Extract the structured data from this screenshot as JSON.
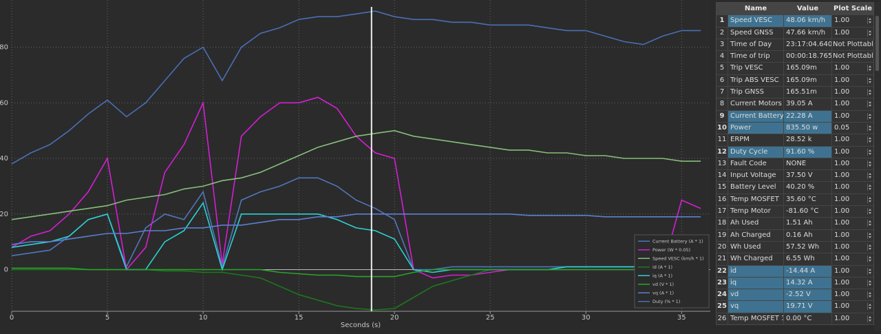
{
  "chart_data": {
    "type": "line",
    "xlabel": "Seconds (s)",
    "x": [
      0,
      1,
      2,
      3,
      4,
      5,
      6,
      7,
      8,
      9,
      10,
      11,
      12,
      13,
      14,
      15,
      16,
      17,
      18,
      19,
      20,
      21,
      22,
      23,
      24,
      25,
      26,
      27,
      28,
      29,
      30,
      31,
      32,
      33,
      34,
      35,
      36
    ],
    "xlim": [
      0,
      36.5
    ],
    "xticks": [
      0,
      5,
      10,
      15,
      20,
      25,
      30,
      35
    ],
    "ylim": [
      -15,
      97
    ],
    "yticks": [
      0,
      20,
      40,
      60,
      80
    ],
    "grid": true,
    "legend": "lower right",
    "cursor_x": 18.8,
    "series": [
      {
        "name": "Current Battery (A * 1)",
        "color": "#5077bb",
        "values": [
          5,
          6,
          7,
          12,
          18,
          20,
          1,
          15,
          20,
          18,
          28,
          1,
          25,
          28,
          30,
          33,
          33,
          30,
          25,
          22,
          18,
          0,
          0,
          1,
          1,
          1,
          1,
          1,
          1,
          1,
          1,
          1,
          1,
          1,
          1,
          10,
          12
        ]
      },
      {
        "name": "Power (W * 0.05)",
        "color": "#d41fd4",
        "values": [
          8,
          12,
          14,
          20,
          28,
          40,
          0,
          8,
          35,
          45,
          60,
          2,
          48,
          55,
          60,
          60,
          62,
          58,
          48,
          42,
          40,
          0,
          -3,
          -2,
          -2,
          -1,
          0,
          0,
          0,
          0,
          0,
          0,
          0,
          0,
          0,
          25,
          22
        ]
      },
      {
        "name": "Speed VESC (km/h * 1)",
        "color": "#86c07a",
        "values": [
          18,
          19,
          20,
          21,
          22,
          23,
          25,
          26,
          27,
          29,
          30,
          32,
          33,
          35,
          38,
          41,
          44,
          46,
          48,
          49,
          50,
          48,
          47,
          46,
          45,
          44,
          43,
          43,
          42,
          42,
          41,
          41,
          40,
          40,
          40,
          39,
          39
        ]
      },
      {
        "name": "id (A * 1)",
        "color": "#1c7a1c",
        "values": [
          0,
          0,
          0,
          0,
          0,
          0,
          0,
          0,
          -0.5,
          -0.5,
          -1,
          -1,
          -2,
          -3,
          -6,
          -9,
          -11,
          -13,
          -14,
          -14.5,
          -14,
          -10,
          -6,
          -4,
          -2,
          0,
          0,
          0,
          0,
          0,
          0,
          0,
          0,
          0,
          0,
          0,
          0
        ]
      },
      {
        "name": "iq (A * 1)",
        "color": "#2bd3d3",
        "values": [
          8,
          9,
          10,
          12,
          18,
          20,
          0,
          0,
          10,
          14,
          24,
          0,
          20,
          20,
          20,
          20,
          20,
          18,
          15,
          14,
          11,
          0,
          -1,
          0,
          0,
          0,
          0,
          0,
          0,
          1,
          1,
          1,
          1,
          1,
          1,
          9,
          9
        ]
      },
      {
        "name": "vd (V * 1)",
        "color": "#2aa52a",
        "values": [
          0.5,
          0.5,
          0.5,
          0.5,
          0,
          0,
          0,
          0,
          0,
          0,
          0,
          0,
          0,
          0,
          -1,
          -1.5,
          -2,
          -2,
          -2.5,
          -2.5,
          -2.5,
          -1,
          0,
          0,
          0,
          0,
          0,
          0,
          0,
          0,
          0,
          0,
          0,
          0,
          0,
          0,
          0
        ]
      },
      {
        "name": "vq (A * 1)",
        "color": "#5b80d2",
        "values": [
          9,
          10,
          10,
          11,
          12,
          13,
          13,
          14,
          14,
          15,
          15,
          16,
          16,
          17,
          18,
          18,
          19,
          19,
          20,
          20,
          20,
          20,
          20,
          20,
          20,
          20,
          20,
          19.5,
          19.5,
          19.5,
          19.5,
          19,
          19,
          19,
          19,
          19,
          19
        ]
      },
      {
        "name": "Duty (% * 1)",
        "color": "#4a6fb5",
        "values": [
          38,
          42,
          45,
          50,
          56,
          61,
          55,
          60,
          68,
          76,
          80,
          68,
          80,
          85,
          87,
          90,
          91,
          91,
          92,
          93,
          91,
          90,
          90,
          89,
          89,
          88,
          88,
          88,
          87,
          86,
          86,
          84,
          82,
          81,
          84,
          86,
          86
        ]
      }
    ]
  },
  "table": {
    "columns": [
      "Name",
      "Value",
      "Plot Scale"
    ],
    "rows": [
      {
        "index": 1,
        "name": "Speed VESC",
        "value": "48.06 km/h",
        "scale": "1.00",
        "highlight": true
      },
      {
        "index": 2,
        "name": "Speed GNSS",
        "value": "47.66 km/h",
        "scale": "1.00",
        "highlight": false
      },
      {
        "index": 3,
        "name": "Time of Day",
        "value": "23:17:04.640",
        "scale": "Not Plottable",
        "highlight": false
      },
      {
        "index": 4,
        "name": "Time of trip",
        "value": "00:00:18.765",
        "scale": "Not Plottable",
        "highlight": false
      },
      {
        "index": 5,
        "name": "Trip VESC",
        "value": "165.09m",
        "scale": "1.00",
        "highlight": false
      },
      {
        "index": 6,
        "name": "Trip ABS VESC",
        "value": "165.09m",
        "scale": "1.00",
        "highlight": false
      },
      {
        "index": 7,
        "name": "Trip GNSS",
        "value": "165.51m",
        "scale": "1.00",
        "highlight": false
      },
      {
        "index": 8,
        "name": "Current Motors",
        "value": "39.05 A",
        "scale": "1.00",
        "highlight": false
      },
      {
        "index": 9,
        "name": "Current Battery",
        "value": "22.28 A",
        "scale": "1.00",
        "highlight": true
      },
      {
        "index": 10,
        "name": "Power",
        "value": "835.50 w",
        "scale": "0.05",
        "highlight": true
      },
      {
        "index": 11,
        "name": "ERPM",
        "value": "28.52 k",
        "scale": "1.00",
        "highlight": false
      },
      {
        "index": 12,
        "name": "Duty Cycle",
        "value": "91.60 %",
        "scale": "1.00",
        "highlight": true
      },
      {
        "index": 13,
        "name": "Fault Code",
        "value": "NONE",
        "scale": "1.00",
        "highlight": false
      },
      {
        "index": 14,
        "name": "Input Voltage",
        "value": "37.50 V",
        "scale": "1.00",
        "highlight": false
      },
      {
        "index": 15,
        "name": "Battery Level",
        "value": "40.20 %",
        "scale": "1.00",
        "highlight": false
      },
      {
        "index": 16,
        "name": "Temp MOSFET",
        "value": "35.60 °C",
        "scale": "1.00",
        "highlight": false
      },
      {
        "index": 17,
        "name": "Temp Motor",
        "value": "-81.60 °C",
        "scale": "1.00",
        "highlight": false
      },
      {
        "index": 18,
        "name": "Ah Used",
        "value": "1.51 Ah",
        "scale": "1.00",
        "highlight": false
      },
      {
        "index": 19,
        "name": "Ah Charged",
        "value": "0.16 Ah",
        "scale": "1.00",
        "highlight": false
      },
      {
        "index": 20,
        "name": "Wh Used",
        "value": "57.52 Wh",
        "scale": "1.00",
        "highlight": false
      },
      {
        "index": 21,
        "name": "Wh Charged",
        "value": "6.55 Wh",
        "scale": "1.00",
        "highlight": false
      },
      {
        "index": 22,
        "name": "id",
        "value": "-14.44 A",
        "scale": "1.00",
        "highlight": true
      },
      {
        "index": 23,
        "name": "iq",
        "value": "14.32 A",
        "scale": "1.00",
        "highlight": true
      },
      {
        "index": 24,
        "name": "vd",
        "value": "-2.52 V",
        "scale": "1.00",
        "highlight": true
      },
      {
        "index": 25,
        "name": "vq",
        "value": "19.71 V",
        "scale": "1.00",
        "highlight": true
      },
      {
        "index": 26,
        "name": "Temp MOSFET 1",
        "value": "0.00 °C",
        "scale": "1.00",
        "highlight": false
      }
    ]
  }
}
